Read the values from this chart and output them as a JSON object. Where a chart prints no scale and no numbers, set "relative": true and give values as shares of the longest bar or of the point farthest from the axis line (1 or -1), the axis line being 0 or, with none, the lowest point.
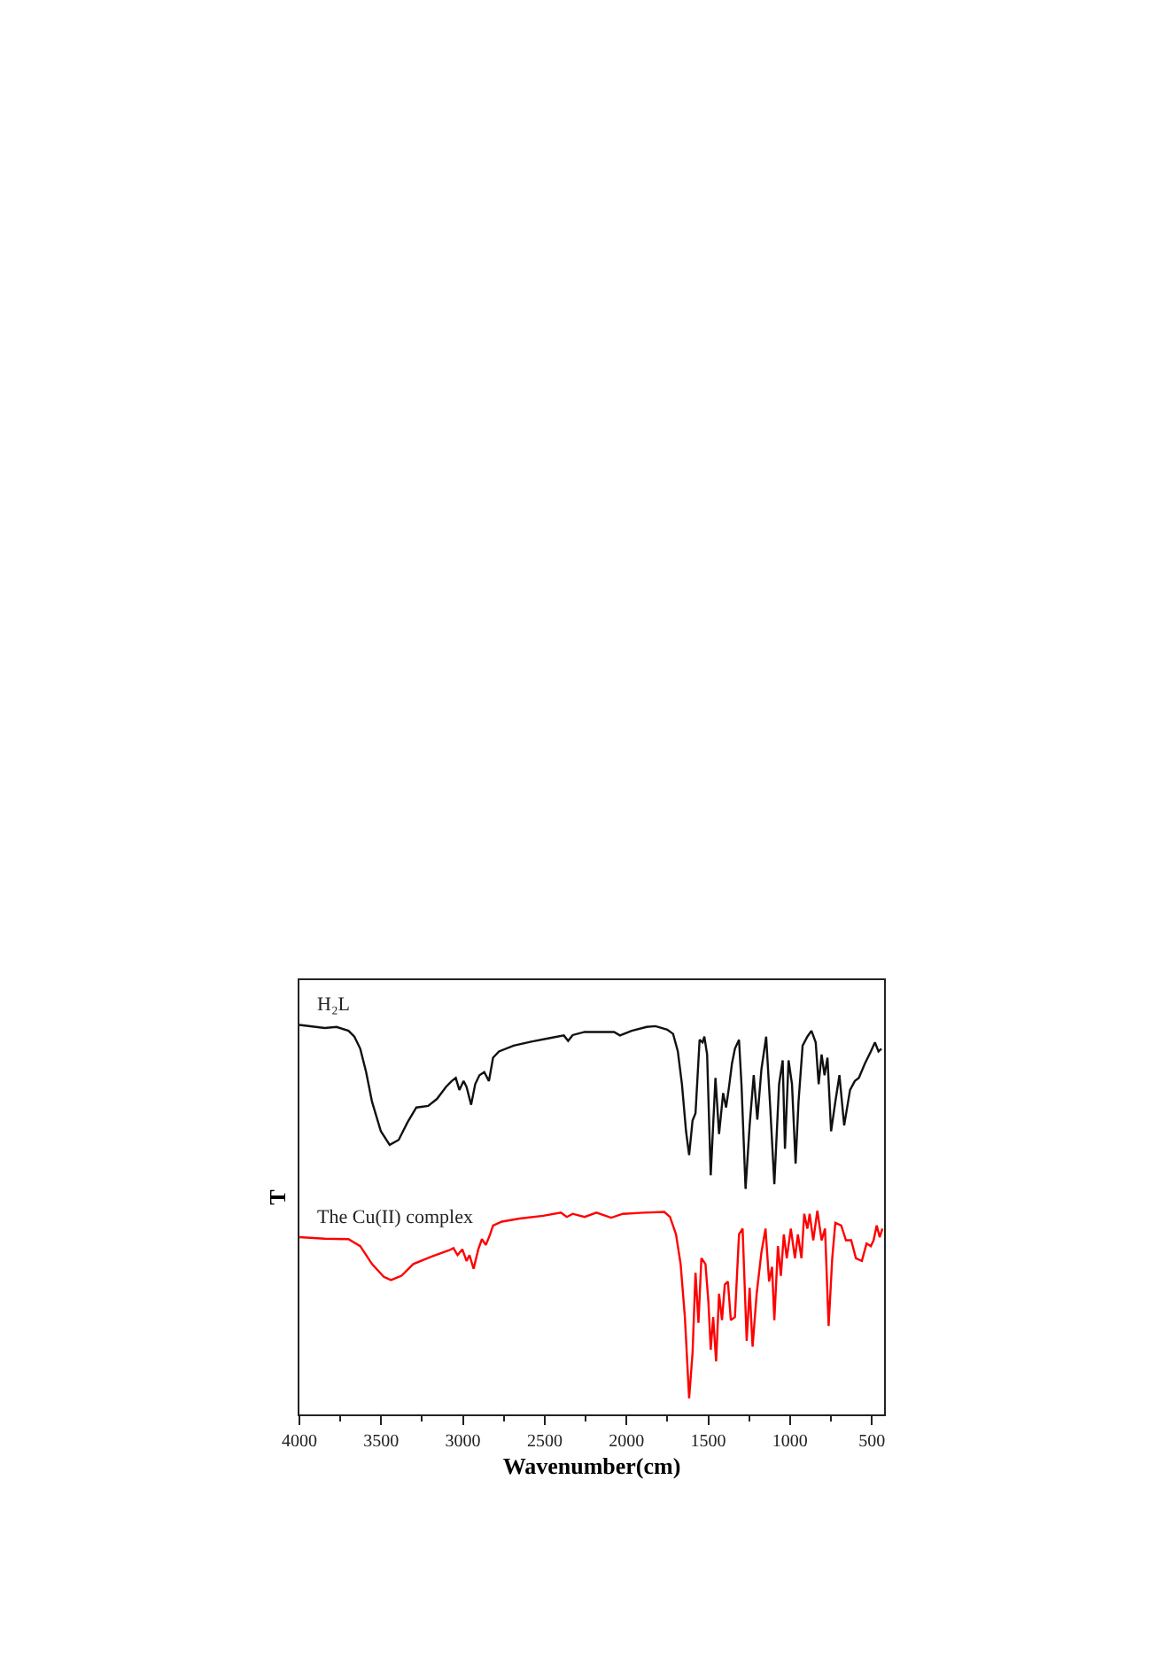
{
  "chart_data": {
    "type": "line",
    "relative": true,
    "xlabel": "Wavenumber(cm)",
    "ylabel": "T",
    "xlim": [
      4000,
      425
    ],
    "xticks": [
      4000,
      {
        "value": 3750,
        "label": null
      },
      3500,
      {
        "value": 3250,
        "label": null
      },
      3000,
      {
        "value": 2750,
        "label": null
      },
      2500,
      {
        "value": 2250,
        "label": null
      },
      2000,
      {
        "value": 1750,
        "label": null
      },
      1500,
      {
        "value": 1250,
        "label": null
      },
      1000,
      {
        "value": 750,
        "label": null
      },
      500
    ],
    "series": [
      {
        "name": "H₂L",
        "color": "#111111",
        "x": [
          4000,
          3845,
          3773,
          3700,
          3664,
          3628,
          3592,
          3556,
          3502,
          3448,
          3393,
          3339,
          3285,
          3213,
          3159,
          3104,
          3069,
          3044,
          3022,
          2996,
          2978,
          2950,
          2925,
          2899,
          2870,
          2841,
          2816,
          2780,
          2690,
          2582,
          2473,
          2383,
          2357,
          2329,
          2256,
          2076,
          2040,
          1968,
          1877,
          1823,
          1751,
          1715,
          1686,
          1661,
          1636,
          1617,
          1596,
          1578,
          1553,
          1535,
          1524,
          1507,
          1485,
          1456,
          1434,
          1409,
          1391,
          1373,
          1355,
          1337,
          1312,
          1297,
          1272,
          1247,
          1222,
          1200,
          1175,
          1146,
          1121,
          1096,
          1067,
          1045,
          1031,
          1009,
          988,
          966,
          948,
          923,
          894,
          869,
          843,
          825,
          807,
          789,
          771,
          749,
          723,
          698,
          669,
          633,
          604,
          579,
          542,
          506,
          481,
          459,
          441
        ],
        "values": [
          1.0,
          0.992,
          0.995,
          0.985,
          0.97,
          0.939,
          0.879,
          0.803,
          0.727,
          0.692,
          0.705,
          0.75,
          0.788,
          0.792,
          0.81,
          0.841,
          0.856,
          0.864,
          0.833,
          0.856,
          0.841,
          0.795,
          0.848,
          0.871,
          0.879,
          0.856,
          0.916,
          0.932,
          0.947,
          0.957,
          0.966,
          0.973,
          0.959,
          0.974,
          0.982,
          0.982,
          0.973,
          0.985,
          0.995,
          0.997,
          0.988,
          0.977,
          0.932,
          0.848,
          0.727,
          0.666,
          0.755,
          0.773,
          0.962,
          0.955,
          0.97,
          0.924,
          0.614,
          0.864,
          0.72,
          0.825,
          0.788,
          0.841,
          0.901,
          0.939,
          0.962,
          0.848,
          0.579,
          0.742,
          0.871,
          0.757,
          0.886,
          0.97,
          0.788,
          0.591,
          0.848,
          0.909,
          0.682,
          0.909,
          0.848,
          0.644,
          0.803,
          0.947,
          0.97,
          0.985,
          0.955,
          0.848,
          0.924,
          0.871,
          0.916,
          0.727,
          0.803,
          0.871,
          0.742,
          0.833,
          0.856,
          0.864,
          0.901,
          0.932,
          0.955,
          0.932,
          0.939
        ]
      },
      {
        "name": "The Cu(II) complex",
        "color": "#ff0000",
        "x": [
          4000,
          3845,
          3700,
          3628,
          3556,
          3484,
          3440,
          3376,
          3304,
          3195,
          3087,
          3058,
          3033,
          3004,
          2978,
          2960,
          2935,
          2906,
          2884,
          2860,
          2834,
          2816,
          2762,
          2654,
          2509,
          2401,
          2365,
          2329,
          2256,
          2184,
          2094,
          2022,
          1896,
          1769,
          1734,
          1697,
          1669,
          1643,
          1617,
          1596,
          1578,
          1560,
          1542,
          1517,
          1499,
          1485,
          1470,
          1452,
          1434,
          1416,
          1399,
          1380,
          1362,
          1337,
          1312,
          1290,
          1265,
          1247,
          1229,
          1204,
          1175,
          1150,
          1128,
          1110,
          1096,
          1074,
          1056,
          1038,
          1020,
          995,
          970,
          952,
          930,
          913,
          894,
          880,
          858,
          833,
          807,
          786,
          764,
          742,
          723,
          687,
          658,
          626,
          597,
          561,
          532,
          506,
          489,
          470,
          452,
          435
        ],
        "values": [
          0.455,
          0.451,
          0.45,
          0.432,
          0.386,
          0.353,
          0.345,
          0.356,
          0.386,
          0.405,
          0.421,
          0.427,
          0.409,
          0.424,
          0.394,
          0.409,
          0.374,
          0.424,
          0.45,
          0.435,
          0.462,
          0.485,
          0.495,
          0.503,
          0.51,
          0.518,
          0.507,
          0.515,
          0.507,
          0.518,
          0.505,
          0.515,
          0.518,
          0.52,
          0.507,
          0.462,
          0.386,
          0.25,
          0.041,
          0.159,
          0.364,
          0.235,
          0.401,
          0.386,
          0.288,
          0.166,
          0.25,
          0.136,
          0.31,
          0.242,
          0.333,
          0.341,
          0.242,
          0.25,
          0.462,
          0.477,
          0.189,
          0.325,
          0.174,
          0.31,
          0.416,
          0.477,
          0.341,
          0.379,
          0.242,
          0.432,
          0.356,
          0.462,
          0.401,
          0.477,
          0.401,
          0.462,
          0.401,
          0.515,
          0.477,
          0.515,
          0.447,
          0.523,
          0.447,
          0.477,
          0.227,
          0.401,
          0.492,
          0.485,
          0.447,
          0.447,
          0.401,
          0.394,
          0.439,
          0.432,
          0.447,
          0.485,
          0.455,
          0.477
        ]
      }
    ]
  }
}
